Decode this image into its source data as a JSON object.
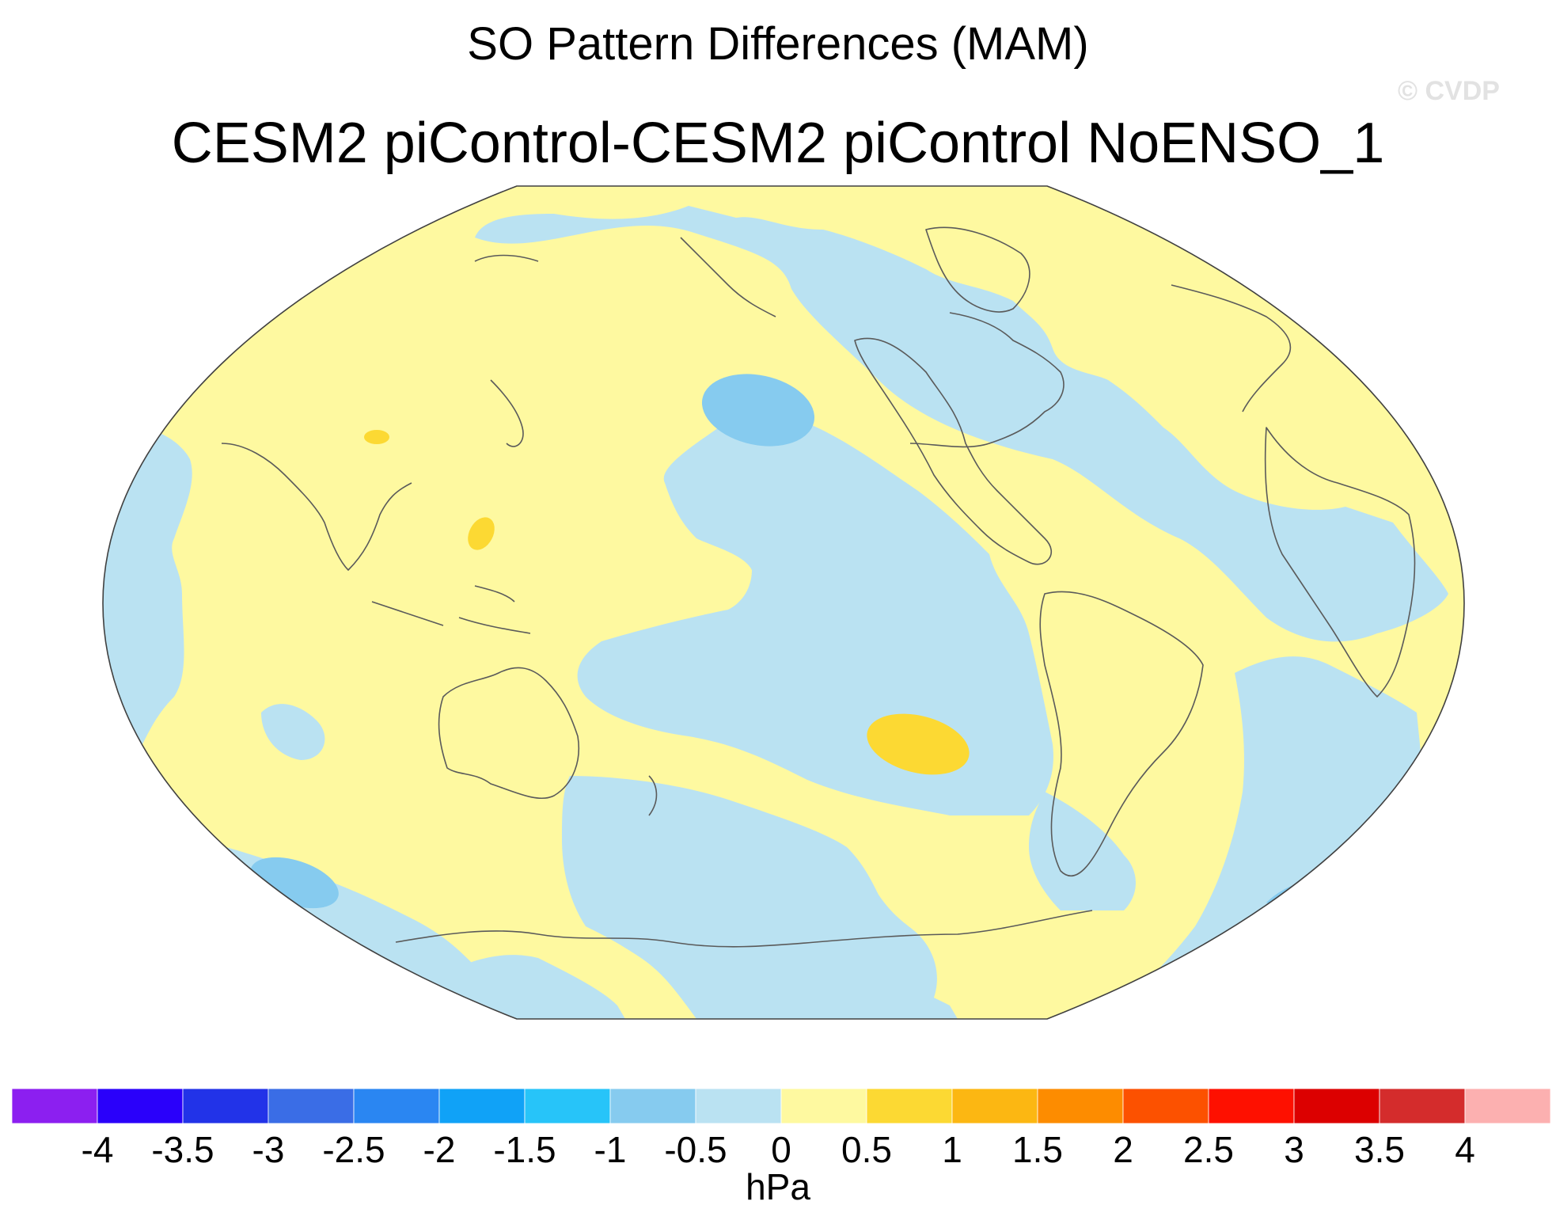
{
  "header": {
    "title": "SO Pattern Differences (MAM)",
    "subtitle": "CESM2 piControl-CESM2 piControl NoENSO_1",
    "copyright": "© CVDP"
  },
  "colorbar": {
    "units": "hPa",
    "colors": [
      "#8c1ff0",
      "#2a00fa",
      "#2233e8",
      "#3a6de6",
      "#2a86f2",
      "#10a2f7",
      "#27c4f9",
      "#86cbef",
      "#bae2f2",
      "#fef9a0",
      "#fcd933",
      "#fcb712",
      "#fd8c00",
      "#fc5100",
      "#fe1000",
      "#dc0000",
      "#d42c2c",
      "#fcb0b0"
    ],
    "ticks": [
      "-4",
      "-3.5",
      "-3",
      "-2.5",
      "-2",
      "-1.5",
      "-1",
      "-0.5",
      "0",
      "0.5",
      "1",
      "1.5",
      "2",
      "2.5",
      "3",
      "3.5",
      "4"
    ]
  }
}
